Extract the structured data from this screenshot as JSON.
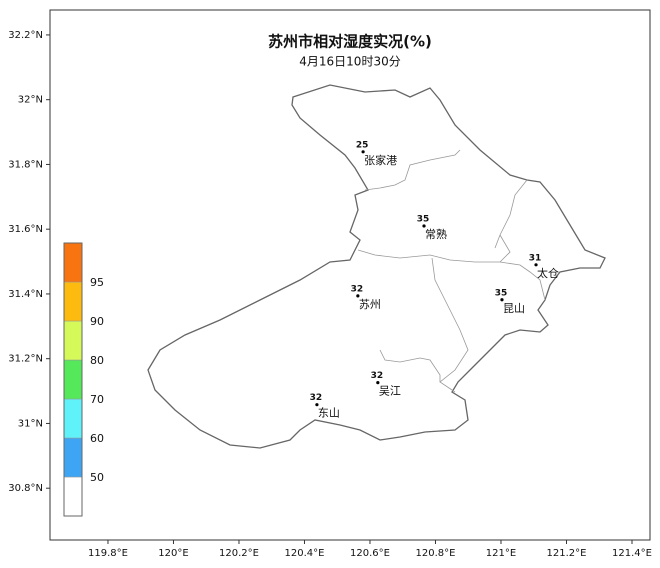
{
  "title": "苏州市相对湿度实况(%)",
  "subtitle": "4月16日10时30分",
  "map": {
    "xlim": [
      119.623,
      121.455
    ],
    "ylim": [
      30.64,
      32.277
    ],
    "xticks": [
      {
        "value": 119.8,
        "label": "119.8°E"
      },
      {
        "value": 120,
        "label": "120°E"
      },
      {
        "value": 120.2,
        "label": "120.2°E"
      },
      {
        "value": 120.4,
        "label": "120.4°E"
      },
      {
        "value": 120.6,
        "label": "120.6°E"
      },
      {
        "value": 120.8,
        "label": "120.8°E"
      },
      {
        "value": 121,
        "label": "121°E"
      },
      {
        "value": 121.2,
        "label": "121.2°E"
      },
      {
        "value": 121.4,
        "label": "121.4°E"
      }
    ],
    "yticks": [
      {
        "value": 30.8,
        "label": "30.8°N"
      },
      {
        "value": 31,
        "label": "31°N"
      },
      {
        "value": 31.2,
        "label": "31.2°N"
      },
      {
        "value": 31.4,
        "label": "31.4°N"
      },
      {
        "value": 31.6,
        "label": "31.6°N"
      },
      {
        "value": 31.8,
        "label": "31.8°N"
      },
      {
        "value": 32,
        "label": "32°N"
      },
      {
        "value": 32.2,
        "label": "32.2°N"
      }
    ]
  },
  "stations": [
    {
      "name": "张家港",
      "value": 25,
      "lon": 120.579,
      "lat": 31.839
    },
    {
      "name": "常熟",
      "value": 35,
      "lon": 120.765,
      "lat": 31.61
    },
    {
      "name": "太仓",
      "value": 31,
      "lon": 121.107,
      "lat": 31.49
    },
    {
      "name": "昆山",
      "value": 35,
      "lon": 121.003,
      "lat": 31.382
    },
    {
      "name": "苏州",
      "value": 32,
      "lon": 120.563,
      "lat": 31.394
    },
    {
      "name": "吴江",
      "value": 32,
      "lon": 120.624,
      "lat": 31.126
    },
    {
      "name": "东山",
      "value": 32,
      "lon": 120.438,
      "lat": 31.058
    }
  ],
  "legend": {
    "colors": [
      "#ffffff",
      "#3ea5f5",
      "#5ff2f9",
      "#55e85a",
      "#d6f95a",
      "#fdbb10",
      "#f87410"
    ],
    "bounds": [
      50,
      60,
      70,
      80,
      90,
      95
    ]
  }
}
